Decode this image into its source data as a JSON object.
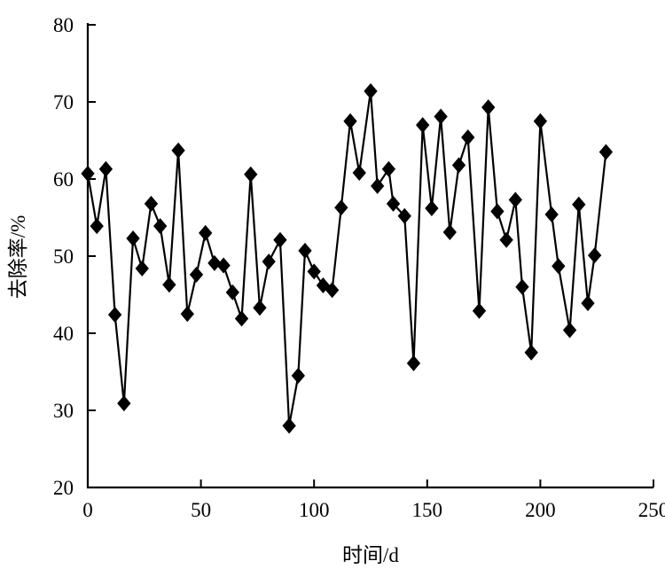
{
  "chart_data": {
    "type": "line",
    "marker": "diamond",
    "color": "#000000",
    "title": "",
    "xlabel": "时间/d",
    "ylabel": "去除率/%",
    "xlim": [
      0,
      250
    ],
    "ylim": [
      20,
      80
    ],
    "xticks": [
      0,
      50,
      100,
      150,
      200,
      250
    ],
    "yticks": [
      20,
      30,
      40,
      50,
      60,
      70,
      80
    ],
    "grid": false,
    "x": [
      0,
      4,
      8,
      12,
      16,
      20,
      24,
      28,
      32,
      36,
      40,
      44,
      48,
      52,
      56,
      60,
      64,
      68,
      72,
      76,
      80,
      85,
      89,
      93,
      96,
      100,
      104,
      108,
      112,
      116,
      120,
      125,
      128,
      133,
      135,
      140,
      144,
      148,
      152,
      156,
      160,
      164,
      168,
      173,
      177,
      181,
      185,
      189,
      192,
      196,
      200,
      205,
      208,
      213,
      217,
      221,
      224,
      229
    ],
    "y": [
      60.7,
      53.9,
      61.3,
      42.4,
      30.9,
      52.3,
      48.4,
      56.8,
      53.9,
      46.3,
      63.7,
      42.5,
      47.6,
      53.0,
      49.1,
      48.8,
      45.3,
      41.9,
      60.6,
      43.3,
      49.3,
      52.1,
      28.0,
      34.5,
      50.7,
      48.0,
      46.2,
      45.6,
      56.3,
      67.5,
      60.8,
      71.4,
      59.1,
      61.3,
      56.8,
      55.2,
      36.1,
      67.0,
      56.2,
      68.1,
      53.1,
      61.8,
      65.4,
      42.9,
      69.3,
      55.8,
      52.1,
      57.3,
      46.0,
      37.5,
      67.5,
      55.4,
      48.7,
      40.4,
      56.7,
      43.9,
      50.1,
      63.5
    ]
  }
}
